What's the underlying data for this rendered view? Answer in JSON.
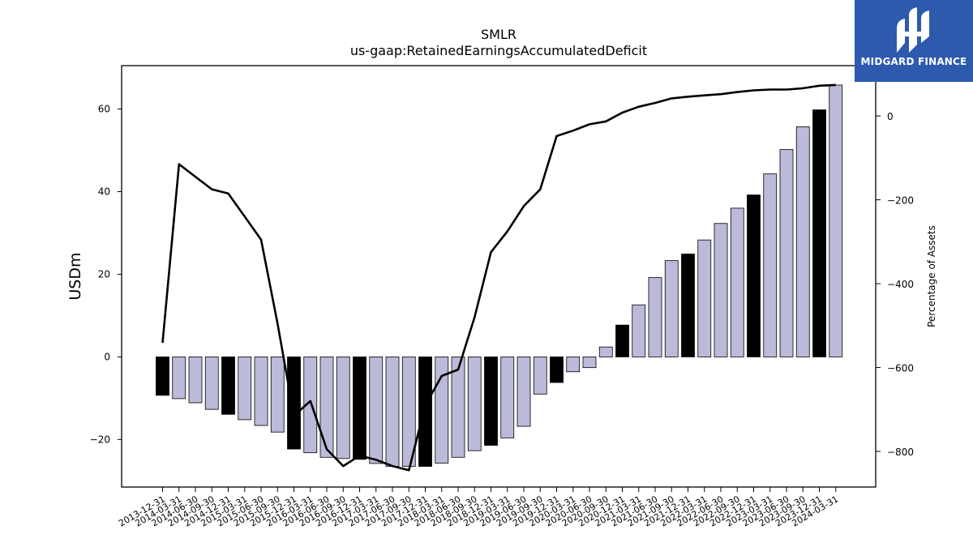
{
  "chart_data": {
    "type": "bar+line",
    "title": "SMLR",
    "subtitle": "us-gaap:RetainedEarningsAccumulatedDeficit",
    "ylabel_left": "USDm",
    "ylabel_right": "Percentage of Assets",
    "ylim_left": [
      -31.5,
      70.5
    ],
    "ylim_right": [
      -885,
      120
    ],
    "yticks_left": [
      -20,
      0,
      20,
      40,
      60
    ],
    "yticks_right": [
      -800,
      -600,
      -400,
      -200,
      0
    ],
    "bar_color": "#bcbad9",
    "highlight_color": "#000000",
    "line_color": "#000000",
    "categories": [
      "2013-12-31",
      "2014-03-31",
      "2014-06-30",
      "2014-09-30",
      "2014-12-31",
      "2015-03-31",
      "2015-06-30",
      "2015-09-30",
      "2015-12-31",
      "2016-03-31",
      "2016-06-30",
      "2016-09-30",
      "2016-12-31",
      "2017-03-31",
      "2017-06-30",
      "2017-09-30",
      "2017-12-31",
      "2018-03-31",
      "2018-06-30",
      "2018-09-30",
      "2018-12-31",
      "2019-03-31",
      "2019-06-30",
      "2019-09-30",
      "2019-12-31",
      "2020-03-31",
      "2020-06-30",
      "2020-09-30",
      "2020-12-31",
      "2021-03-31",
      "2021-06-30",
      "2021-09-30",
      "2021-12-31",
      "2022-03-31",
      "2022-06-30",
      "2022-09-30",
      "2022-12-31",
      "2023-03-31",
      "2023-06-30",
      "2023-09-30",
      "2023-12-31",
      "2024-03-31"
    ],
    "series": [
      {
        "kind": "bar",
        "values": [
          -9.3,
          -10.1,
          -11.1,
          -12.7,
          -13.9,
          -15.2,
          -16.6,
          -18.2,
          -22.3,
          -23.2,
          -24.3,
          -24.6,
          -24.8,
          -25.8,
          -26.5,
          -26.5,
          -26.5,
          -25.7,
          -24.3,
          -22.7,
          -21.4,
          -19.6,
          -16.8,
          -9.0,
          -6.2,
          -3.6,
          -2.6,
          2.4,
          7.7,
          12.6,
          19.2,
          23.3,
          24.9,
          28.3,
          32.3,
          36.0,
          39.2,
          44.3,
          50.2,
          55.7,
          59.8,
          65.8
        ],
        "highlight": [
          true,
          false,
          false,
          false,
          true,
          false,
          false,
          false,
          true,
          false,
          false,
          false,
          true,
          false,
          false,
          false,
          true,
          false,
          false,
          false,
          true,
          false,
          false,
          false,
          true,
          false,
          false,
          false,
          true,
          false,
          false,
          false,
          true,
          false,
          false,
          false,
          true,
          false,
          false,
          false,
          true,
          false
        ]
      },
      {
        "kind": "line",
        "axis": "right",
        "values": [
          -541,
          -115,
          -145,
          -175,
          -185,
          -240,
          -295,
          -495,
          -715,
          -680,
          -795,
          -835,
          -810,
          -820,
          -835,
          -845,
          -690,
          -620,
          -605,
          -480,
          -325,
          -275,
          -215,
          -175,
          -48,
          -35,
          -20,
          -13,
          8,
          22,
          31,
          42,
          46,
          49,
          52,
          57,
          61,
          63,
          63,
          66,
          72,
          74
        ]
      }
    ]
  },
  "logo": {
    "text": "MIDGARD FINANCE"
  }
}
